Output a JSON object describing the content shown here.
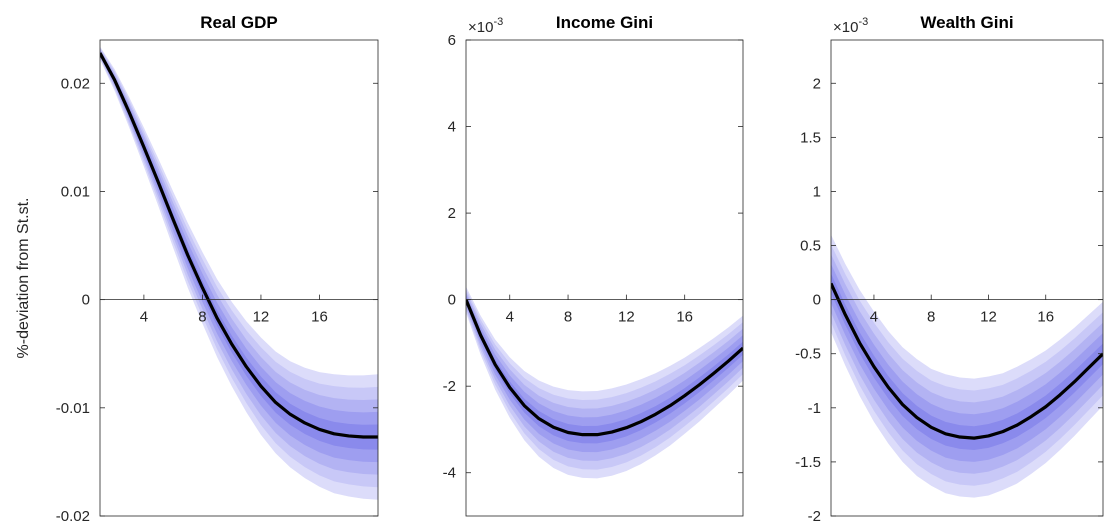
{
  "chart_data": [
    {
      "type": "line",
      "title": "Real GDP",
      "ylabel": "%-deviation from St.st.",
      "xlabel": "",
      "xlim": [
        1,
        20
      ],
      "ylim": [
        -0.02,
        0.024
      ],
      "xticks": [
        4,
        8,
        12,
        16
      ],
      "xtick_labels": [
        "4",
        "8",
        "12",
        "16"
      ],
      "yticks": [
        -0.02,
        -0.01,
        0,
        0.01,
        0.02
      ],
      "ytick_labels": [
        "-0.02",
        "-0.01",
        "0",
        "0.01",
        "0.02"
      ],
      "exponent_label": "",
      "x": [
        1,
        2,
        3,
        4,
        5,
        6,
        7,
        8,
        9,
        10,
        11,
        12,
        13,
        14,
        15,
        16,
        17,
        18,
        19,
        20
      ],
      "series": [
        {
          "values": [
            0.0228,
            0.0203,
            0.0173,
            0.0141,
            0.0108,
            0.0074,
            0.0041,
            0.0011,
            -0.0017,
            -0.0041,
            -0.0062,
            -0.008,
            -0.0095,
            -0.0106,
            -0.0114,
            -0.012,
            -0.0124,
            -0.0126,
            -0.0127,
            -0.0127
          ],
          "color": "#000000"
        }
      ],
      "bands": {
        "half_widths": [
          0.0006,
          0.001,
          0.0014,
          0.0018,
          0.0022,
          0.0026,
          0.003,
          0.0033,
          0.0036,
          0.0039,
          0.0042,
          0.0045,
          0.0047,
          0.0049,
          0.0051,
          0.0053,
          0.0055,
          0.0056,
          0.0057,
          0.0058
        ],
        "levels": [
          1.0,
          0.8,
          0.6,
          0.4,
          0.2
        ],
        "colors": [
          "#dcdcfa",
          "#c8c8f7",
          "#b3b3f3",
          "#9e9ef0",
          "#8a8aec"
        ]
      },
      "grid": false
    },
    {
      "type": "line",
      "title": "Income Gini",
      "ylabel": "",
      "xlabel": "",
      "xlim": [
        1,
        20
      ],
      "ylim": [
        -5,
        6
      ],
      "xticks": [
        4,
        8,
        12,
        16
      ],
      "xtick_labels": [
        "4",
        "8",
        "12",
        "16"
      ],
      "yticks": [
        -4,
        -2,
        0,
        2,
        4,
        6
      ],
      "ytick_labels": [
        "-4",
        "-2",
        "0",
        "2",
        "4",
        "6"
      ],
      "exponent_label": "×10",
      "exponent_power": "-3",
      "x": [
        1,
        2,
        3,
        4,
        5,
        6,
        7,
        8,
        9,
        10,
        11,
        12,
        13,
        14,
        15,
        16,
        17,
        18,
        19,
        20
      ],
      "series": [
        {
          "values": [
            0.0,
            -0.82,
            -1.5,
            -2.03,
            -2.45,
            -2.75,
            -2.95,
            -3.07,
            -3.12,
            -3.12,
            -3.06,
            -2.96,
            -2.82,
            -2.65,
            -2.45,
            -2.22,
            -1.97,
            -1.7,
            -1.42,
            -1.12
          ],
          "color": "#000000"
        }
      ],
      "bands": {
        "half_widths": [
          0.3,
          0.45,
          0.58,
          0.7,
          0.8,
          0.88,
          0.94,
          0.98,
          1.0,
          1.01,
          1.01,
          1.0,
          0.98,
          0.95,
          0.92,
          0.88,
          0.85,
          0.81,
          0.78,
          0.75
        ],
        "levels": [
          1.0,
          0.8,
          0.6,
          0.4,
          0.2
        ],
        "colors": [
          "#dcdcfa",
          "#c8c8f7",
          "#b3b3f3",
          "#9e9ef0",
          "#8a8aec"
        ]
      },
      "grid": false
    },
    {
      "type": "line",
      "title": "Wealth Gini",
      "ylabel": "",
      "xlabel": "",
      "xlim": [
        1,
        20
      ],
      "ylim": [
        -2,
        2.4
      ],
      "xticks": [
        4,
        8,
        12,
        16
      ],
      "xtick_labels": [
        "4",
        "8",
        "12",
        "16"
      ],
      "yticks": [
        -2,
        -1.5,
        -1,
        -0.5,
        0,
        0.5,
        1,
        1.5,
        2
      ],
      "ytick_labels": [
        "-2",
        "-1.5",
        "-1",
        "-0.5",
        "0",
        "0.5",
        "1",
        "1.5",
        "2"
      ],
      "exponent_label": "×10",
      "exponent_power": "-3",
      "x": [
        1,
        2,
        3,
        4,
        5,
        6,
        7,
        8,
        9,
        10,
        11,
        12,
        13,
        14,
        15,
        16,
        17,
        18,
        19,
        20
      ],
      "series": [
        {
          "values": [
            0.15,
            -0.14,
            -0.4,
            -0.62,
            -0.81,
            -0.97,
            -1.09,
            -1.18,
            -1.24,
            -1.27,
            -1.28,
            -1.26,
            -1.22,
            -1.16,
            -1.08,
            -0.99,
            -0.88,
            -0.76,
            -0.63,
            -0.5
          ],
          "color": "#000000"
        }
      ],
      "bands": {
        "half_widths": [
          0.45,
          0.47,
          0.49,
          0.51,
          0.52,
          0.53,
          0.54,
          0.54,
          0.55,
          0.55,
          0.55,
          0.55,
          0.54,
          0.54,
          0.53,
          0.52,
          0.51,
          0.5,
          0.49,
          0.48
        ],
        "levels": [
          1.0,
          0.8,
          0.6,
          0.4,
          0.2
        ],
        "colors": [
          "#dcdcfa",
          "#c8c8f7",
          "#b3b3f3",
          "#9e9ef0",
          "#8a8aec"
        ]
      },
      "grid": false
    }
  ]
}
